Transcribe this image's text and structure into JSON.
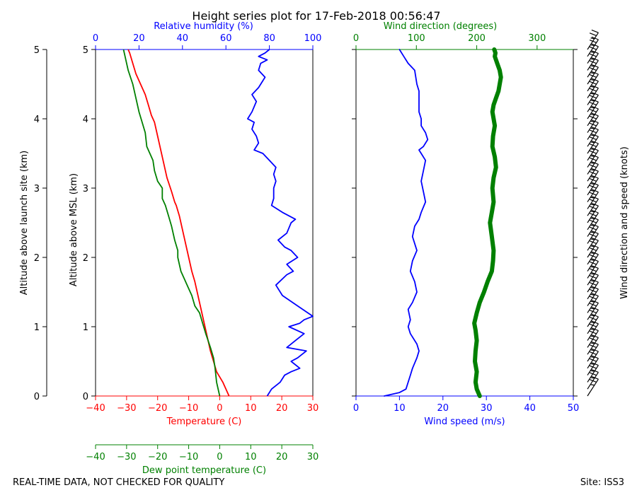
{
  "title": "Height series plot for 17-Feb-2018 00:56:47",
  "footer_left": "REAL-TIME DATA, NOT CHECKED FOR QUALITY",
  "footer_right": "Site: ISS3",
  "colors": {
    "temp": "#ff0000",
    "rh": "#0000ff",
    "dewpoint": "#008000",
    "wspd": "#0000ff",
    "wdir": "#008000",
    "barb": "#000000"
  },
  "chart_data": [
    {
      "type": "line",
      "name": "thermo-panel",
      "y_axis": {
        "label_outer": "Altitude above launch site (km)",
        "label_inner": "Altitude above MSL (km)",
        "range": [
          0,
          5
        ],
        "ticks": [
          0,
          1,
          2,
          3,
          4,
          5
        ]
      },
      "x_axes": [
        {
          "id": "temp",
          "label": "Temperature (C)",
          "range": [
            -40,
            30
          ],
          "ticks": [
            -40,
            -30,
            -20,
            -10,
            0,
            10,
            20,
            30
          ],
          "position": "bottom",
          "color_key": "temp"
        },
        {
          "id": "dewpoint",
          "label": "Dew point temperature (C)",
          "range": [
            -40,
            30
          ],
          "ticks": [
            -40,
            -30,
            -20,
            -10,
            0,
            10,
            20,
            30
          ],
          "position": "bottom-offset",
          "color_key": "dewpoint"
        },
        {
          "id": "rh",
          "label": "Relative humidity (%)",
          "range": [
            0,
            100
          ],
          "ticks": [
            0,
            20,
            40,
            60,
            80,
            100
          ],
          "position": "top",
          "color_key": "rh"
        }
      ],
      "series": [
        {
          "name": "Temperature",
          "axis": "temp",
          "color_key": "temp",
          "x": [
            3,
            1,
            -1,
            -2,
            -3,
            -4,
            -5,
            -6,
            -7,
            -8,
            -9,
            -10,
            -11,
            -12,
            -13,
            -14,
            -14.5,
            -15.5,
            -17,
            -18,
            -19,
            -20,
            -21,
            -22,
            -23,
            -24,
            -25.5,
            -27,
            -28,
            -29,
            -29.5
          ],
          "y": [
            0.0,
            0.2,
            0.35,
            0.5,
            0.65,
            0.85,
            1.05,
            1.25,
            1.45,
            1.65,
            1.8,
            2.0,
            2.2,
            2.4,
            2.6,
            2.75,
            2.8,
            2.95,
            3.15,
            3.35,
            3.55,
            3.75,
            3.95,
            4.05,
            4.2,
            4.35,
            4.5,
            4.65,
            4.8,
            4.95,
            5.0
          ]
        },
        {
          "name": "Dew point",
          "axis": "dewpoint",
          "color_key": "dewpoint",
          "x": [
            0,
            -1,
            -1.5,
            -2,
            -3,
            -4.5,
            -5.5,
            -6.5,
            -8,
            -9,
            -10.5,
            -11.5,
            -12.5,
            -13.5,
            -13.5,
            -14.5,
            -15.5,
            -16.5,
            -17.5,
            -18.5,
            -18.5,
            -20,
            -21,
            -21.5,
            -23.5,
            -24,
            -25,
            -26,
            -27,
            -28,
            -29.5,
            -30.5,
            -31
          ],
          "y": [
            0.0,
            0.2,
            0.4,
            0.55,
            0.7,
            0.9,
            1.05,
            1.2,
            1.3,
            1.45,
            1.6,
            1.7,
            1.8,
            2.0,
            2.1,
            2.25,
            2.45,
            2.6,
            2.75,
            2.85,
            3.0,
            3.1,
            3.25,
            3.4,
            3.6,
            3.8,
            3.95,
            4.1,
            4.3,
            4.5,
            4.7,
            4.9,
            5.0
          ]
        },
        {
          "name": "Relative humidity",
          "axis": "rh",
          "color_key": "rh",
          "x": [
            79,
            81,
            83,
            85,
            87,
            90,
            94,
            90,
            93,
            97,
            88,
            92,
            96,
            89,
            94,
            96,
            100,
            93,
            86,
            83,
            88,
            91,
            88,
            93,
            90,
            87,
            84,
            88,
            90,
            92,
            86,
            81,
            82,
            82,
            83,
            82,
            83,
            80,
            77,
            73,
            75,
            74,
            72,
            73,
            70,
            72,
            74,
            72,
            75,
            77,
            78,
            75,
            76,
            79,
            75,
            78,
            80,
            79,
            77,
            72,
            77
          ],
          "y": [
            0.0,
            0.1,
            0.15,
            0.2,
            0.3,
            0.35,
            0.4,
            0.5,
            0.55,
            0.65,
            0.7,
            0.8,
            0.9,
            1.0,
            1.05,
            1.1,
            1.15,
            1.3,
            1.45,
            1.6,
            1.75,
            1.8,
            1.9,
            2.0,
            2.1,
            2.15,
            2.25,
            2.35,
            2.5,
            2.55,
            2.65,
            2.75,
            2.85,
            3.0,
            3.1,
            3.2,
            3.3,
            3.4,
            3.5,
            3.55,
            3.65,
            3.75,
            3.85,
            3.95,
            4.0,
            4.1,
            4.25,
            4.35,
            4.45,
            4.55,
            4.6,
            4.7,
            4.8,
            4.85,
            4.9,
            4.95,
            5.0,
            4.6,
            4.45,
            4.3,
            4.15
          ]
        }
      ]
    },
    {
      "type": "line",
      "name": "wind-panel",
      "y_axis": {
        "label": "Wind direction and speed (knots)",
        "range": [
          0,
          5
        ],
        "ticks": [
          0,
          1,
          2,
          3,
          4,
          5
        ]
      },
      "x_axes": [
        {
          "id": "wspd",
          "label": "Wind speed (m/s)",
          "range": [
            0,
            50
          ],
          "ticks": [
            0,
            10,
            20,
            30,
            40,
            50
          ],
          "position": "bottom",
          "color_key": "wspd"
        },
        {
          "id": "wdir",
          "label": "Wind direction (degrees)",
          "range": [
            0,
            360
          ],
          "ticks": [
            0,
            100,
            200,
            300
          ],
          "position": "top",
          "color_key": "wdir"
        }
      ],
      "series": [
        {
          "name": "Wind speed",
          "axis": "wspd",
          "color_key": "wspd",
          "x": [
            6.5,
            10,
            11.5,
            12,
            12.5,
            13,
            14,
            14.5,
            14,
            12.5,
            12,
            12.5,
            12,
            13,
            14,
            13.5,
            12.5,
            13,
            14,
            13,
            13.5,
            14.5,
            15,
            16,
            15.5,
            15,
            15.5,
            16,
            15,
            14.5,
            15.5,
            16.5,
            16,
            15,
            15,
            14.5,
            14.5,
            14.5,
            14,
            13.5,
            12,
            11,
            10
          ],
          "y": [
            0.0,
            0.05,
            0.1,
            0.2,
            0.3,
            0.4,
            0.55,
            0.65,
            0.75,
            0.9,
            1.0,
            1.1,
            1.25,
            1.35,
            1.5,
            1.65,
            1.8,
            1.95,
            2.1,
            2.3,
            2.45,
            2.55,
            2.65,
            2.8,
            2.95,
            3.1,
            3.25,
            3.4,
            3.5,
            3.55,
            3.6,
            3.7,
            3.8,
            3.9,
            4.0,
            4.1,
            4.2,
            4.4,
            4.5,
            4.7,
            4.8,
            4.9,
            5.0
          ]
        },
        {
          "name": "Wind direction",
          "axis": "wdir",
          "color_key": "wdir",
          "x": [
            205,
            200,
            198,
            200,
            197,
            198,
            200,
            198,
            196,
            200,
            205,
            212,
            218,
            225,
            227,
            228,
            225,
            222,
            225,
            228,
            226,
            228,
            232,
            230,
            226,
            227,
            230,
            228,
            226,
            228,
            232,
            236,
            238,
            240,
            238,
            234,
            230,
            231,
            229
          ],
          "y": [
            0.0,
            0.1,
            0.2,
            0.35,
            0.5,
            0.65,
            0.8,
            0.95,
            1.05,
            1.2,
            1.35,
            1.5,
            1.65,
            1.8,
            1.95,
            2.1,
            2.3,
            2.5,
            2.65,
            2.8,
            3.0,
            3.15,
            3.3,
            3.45,
            3.6,
            3.75,
            3.9,
            4.0,
            4.1,
            4.2,
            4.3,
            4.4,
            4.5,
            4.6,
            4.7,
            4.8,
            4.9,
            4.95,
            5.0
          ]
        },
        {
          "name": "Wind barbs",
          "type": "barbs",
          "levels": [
            0.0,
            0.1,
            0.2,
            0.3,
            0.4,
            0.5,
            0.6,
            0.7,
            0.8,
            0.9,
            1.0,
            1.1,
            1.2,
            1.3,
            1.4,
            1.5,
            1.6,
            1.7,
            1.8,
            1.9,
            2.0,
            2.1,
            2.2,
            2.3,
            2.4,
            2.5,
            2.6,
            2.7,
            2.8,
            2.9,
            3.0,
            3.1,
            3.2,
            3.3,
            3.4,
            3.5,
            3.6,
            3.7,
            3.8,
            3.9,
            4.0,
            4.1,
            4.2,
            4.3,
            4.4,
            4.5,
            4.6,
            4.7,
            4.8,
            4.9,
            5.0
          ],
          "speed_kt": 25,
          "direction_deg": 225
        }
      ]
    }
  ]
}
